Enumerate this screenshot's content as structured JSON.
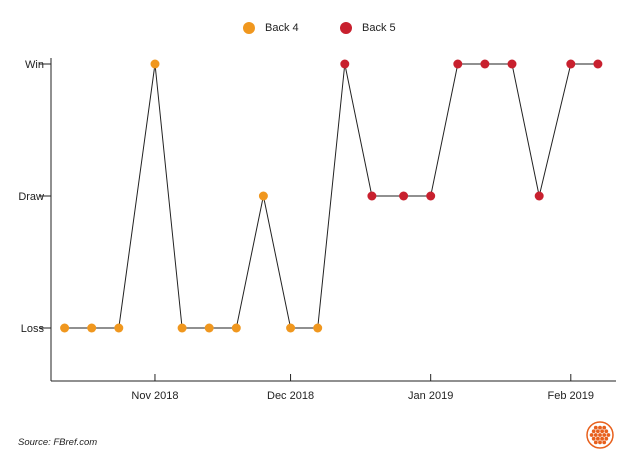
{
  "chart_data": {
    "type": "line",
    "y_categories": [
      "Loss",
      "Draw",
      "Win"
    ],
    "x_ticks": [
      "Nov 2018",
      "Dec 2018",
      "Jan 2019",
      "Feb 2019"
    ],
    "x_tick_dates": [
      "2018-11-01",
      "2018-12-01",
      "2019-01-01",
      "2019-02-01"
    ],
    "xlim": [
      "2018-10-09",
      "2019-02-11"
    ],
    "series": [
      {
        "name": "Back 4",
        "color": "#f0971e"
      },
      {
        "name": "Back 5",
        "color": "#c8202e"
      }
    ],
    "points": [
      {
        "date": "2018-10-12",
        "result": "Loss",
        "series": "Back 4"
      },
      {
        "date": "2018-10-18",
        "result": "Loss",
        "series": "Back 4"
      },
      {
        "date": "2018-10-24",
        "result": "Loss",
        "series": "Back 4"
      },
      {
        "date": "2018-11-01",
        "result": "Win",
        "series": "Back 4"
      },
      {
        "date": "2018-11-07",
        "result": "Loss",
        "series": "Back 4"
      },
      {
        "date": "2018-11-13",
        "result": "Loss",
        "series": "Back 4"
      },
      {
        "date": "2018-11-19",
        "result": "Loss",
        "series": "Back 4"
      },
      {
        "date": "2018-11-25",
        "result": "Draw",
        "series": "Back 4"
      },
      {
        "date": "2018-12-01",
        "result": "Loss",
        "series": "Back 4"
      },
      {
        "date": "2018-12-07",
        "result": "Loss",
        "series": "Back 4"
      },
      {
        "date": "2018-12-13",
        "result": "Win",
        "series": "Back 5"
      },
      {
        "date": "2018-12-19",
        "result": "Draw",
        "series": "Back 5"
      },
      {
        "date": "2018-12-26",
        "result": "Draw",
        "series": "Back 5"
      },
      {
        "date": "2019-01-01",
        "result": "Draw",
        "series": "Back 5"
      },
      {
        "date": "2019-01-07",
        "result": "Win",
        "series": "Back 5"
      },
      {
        "date": "2019-01-13",
        "result": "Win",
        "series": "Back 5"
      },
      {
        "date": "2019-01-19",
        "result": "Win",
        "series": "Back 5"
      },
      {
        "date": "2019-01-25",
        "result": "Draw",
        "series": "Back 5"
      },
      {
        "date": "2019-02-01",
        "result": "Win",
        "series": "Back 5"
      },
      {
        "date": "2019-02-07",
        "result": "Win",
        "series": "Back 5"
      }
    ],
    "line_color": "#222222",
    "grid": false
  },
  "source": "Source: FBref.com",
  "logo_icon": "fbref-honeycomb-logo",
  "logo_color": "#e8601c"
}
